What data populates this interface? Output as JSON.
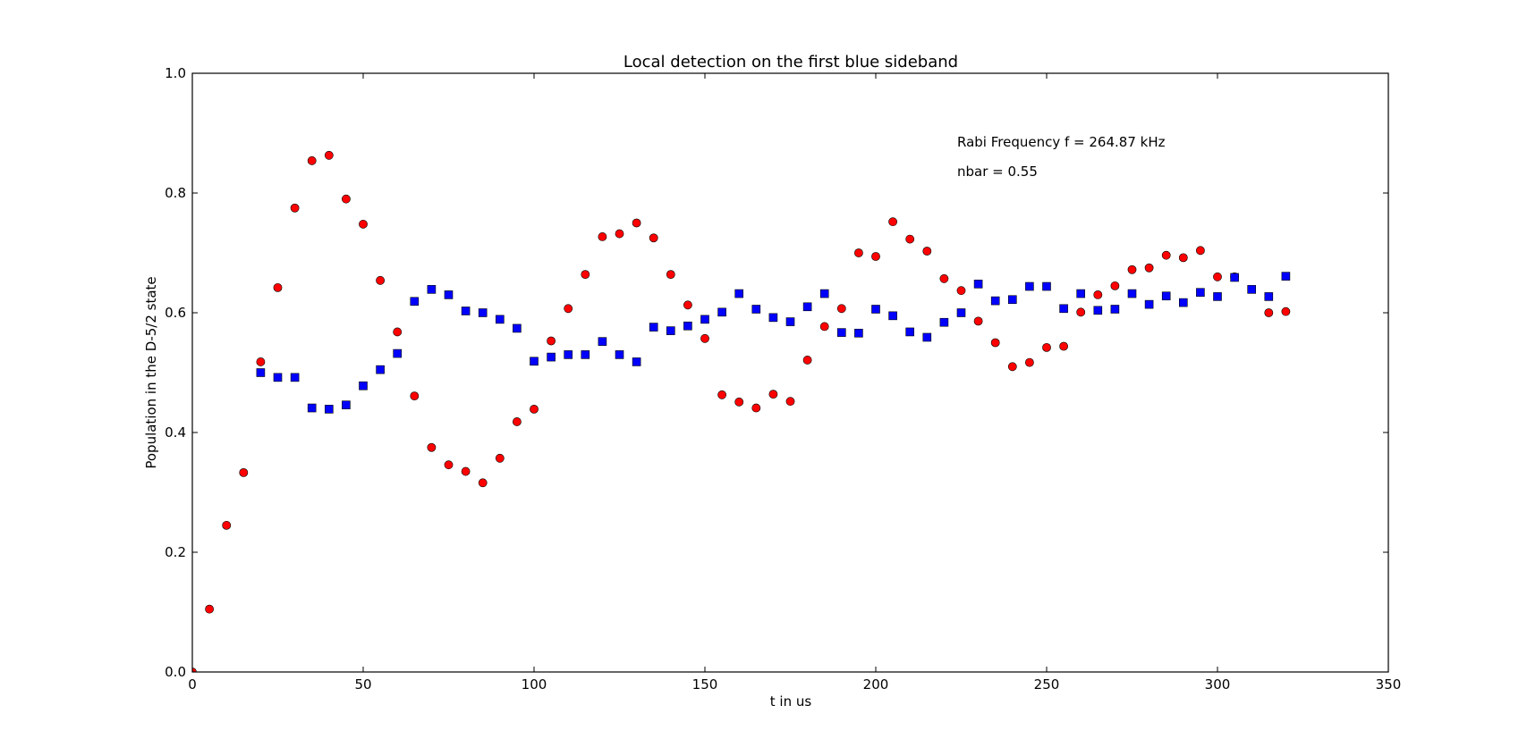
{
  "chart_data": {
    "type": "scatter",
    "title": "Local detection on the first blue sideband",
    "xlabel": "t in us",
    "ylabel": "Population in the D-5/2 state",
    "xlim": [
      0,
      350
    ],
    "ylim": [
      0.0,
      1.0
    ],
    "xticks": [
      "0",
      "50",
      "100",
      "150",
      "200",
      "250",
      "300",
      "350"
    ],
    "yticks": [
      "0.0",
      "0.2",
      "0.4",
      "0.6",
      "0.8",
      "1.0"
    ],
    "grid": false,
    "annotations": [
      "Rabi Frequency f = 264.87 kHz",
      "nbar = 0.55"
    ],
    "series": [
      {
        "marker": "circle",
        "color": "#ff0000",
        "x": [
          0,
          5,
          10,
          15,
          20,
          25,
          30,
          35,
          40,
          45,
          50,
          55,
          60,
          65,
          70,
          75,
          80,
          85,
          90,
          95,
          100,
          105,
          110,
          115,
          120,
          125,
          130,
          135,
          140,
          145,
          150,
          155,
          160,
          165,
          170,
          175,
          180,
          185,
          190,
          195,
          200,
          205,
          210,
          215,
          220,
          225,
          230,
          235,
          240,
          245,
          250,
          255,
          260,
          265,
          270,
          275,
          280,
          285,
          290,
          295,
          300,
          305,
          315,
          320
        ],
        "y": [
          0.0,
          0.105,
          0.245,
          0.333,
          0.518,
          0.642,
          0.775,
          0.854,
          0.863,
          0.79,
          0.748,
          0.654,
          0.568,
          0.461,
          0.375,
          0.346,
          0.335,
          0.316,
          0.357,
          0.418,
          0.439,
          0.553,
          0.607,
          0.664,
          0.727,
          0.732,
          0.75,
          0.725,
          0.664,
          0.613,
          0.557,
          0.463,
          0.451,
          0.441,
          0.464,
          0.452,
          0.521,
          0.577,
          0.607,
          0.7,
          0.694,
          0.752,
          0.723,
          0.703,
          0.657,
          0.637,
          0.586,
          0.55,
          0.51,
          0.517,
          0.542,
          0.544,
          0.601,
          0.63,
          0.645,
          0.672,
          0.675,
          0.696,
          0.692,
          0.704,
          0.66,
          0.66,
          0.6,
          0.602
        ]
      },
      {
        "marker": "square",
        "color": "#0000ff",
        "x": [
          20,
          25,
          30,
          35,
          40,
          45,
          50,
          55,
          60,
          65,
          70,
          75,
          80,
          85,
          90,
          95,
          100,
          105,
          110,
          115,
          120,
          125,
          130,
          135,
          140,
          145,
          150,
          155,
          160,
          165,
          170,
          175,
          180,
          185,
          190,
          195,
          200,
          205,
          210,
          215,
          220,
          225,
          230,
          235,
          240,
          245,
          250,
          255,
          260,
          265,
          270,
          275,
          280,
          285,
          290,
          295,
          300,
          305,
          310,
          315,
          320
        ],
        "y": [
          0.5,
          0.492,
          0.492,
          0.441,
          0.439,
          0.446,
          0.478,
          0.505,
          0.532,
          0.619,
          0.639,
          0.63,
          0.603,
          0.6,
          0.589,
          0.574,
          0.519,
          0.526,
          0.53,
          0.53,
          0.552,
          0.53,
          0.518,
          0.576,
          0.57,
          0.578,
          0.589,
          0.601,
          0.632,
          0.606,
          0.592,
          0.585,
          0.61,
          0.632,
          0.567,
          0.566,
          0.606,
          0.595,
          0.568,
          0.559,
          0.584,
          0.6,
          0.648,
          0.62,
          0.622,
          0.644,
          0.644,
          0.607,
          0.632,
          0.604,
          0.606,
          0.632,
          0.614,
          0.628,
          0.617,
          0.634,
          0.627,
          0.659,
          0.639,
          0.627,
          0.661
        ]
      }
    ]
  }
}
